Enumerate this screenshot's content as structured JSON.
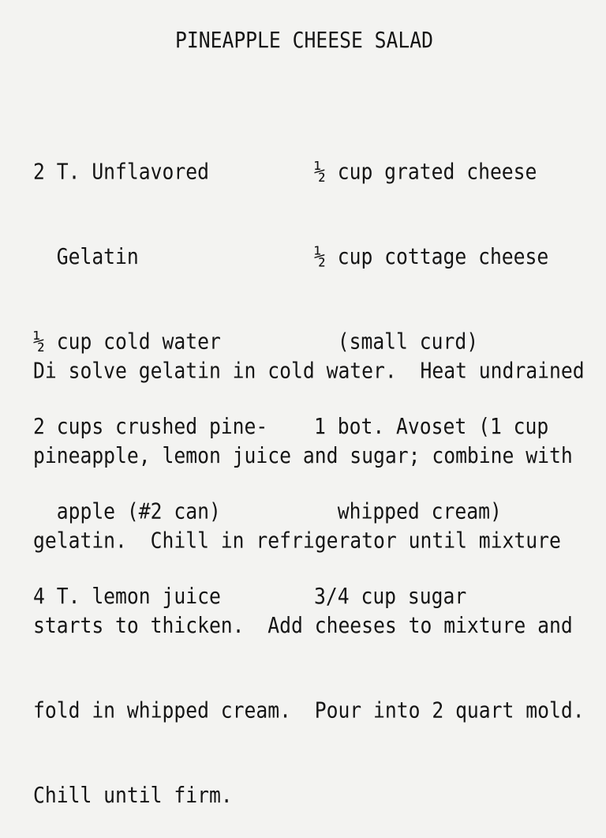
{
  "title": "PINEAPPLE CHEESE SALAD",
  "ingredients_left": [
    "2 T. Unflavored",
    "  Gelatin",
    "½ cup cold water",
    "2 cups crushed pine-",
    "  apple (#2 can)",
    "4 T. lemon juice"
  ],
  "ingredients_right": [
    "½ cup grated cheese",
    "½ cup cottage cheese",
    "  (small curd)",
    "1 bot. Avoset (1 cup",
    "  whipped cream)",
    "3/4 cup sugar"
  ],
  "instructions": [
    "Di solve gelatin in cold water.  Heat undrained",
    "pineapple, lemon juice and sugar; combine with",
    "gelatin.  Chill in refrigerator until mixture",
    "starts to thicken.  Add cheeses to mixture and",
    "fold in whipped cream.  Pour into 2 quart mold.",
    "Chill until firm."
  ]
}
